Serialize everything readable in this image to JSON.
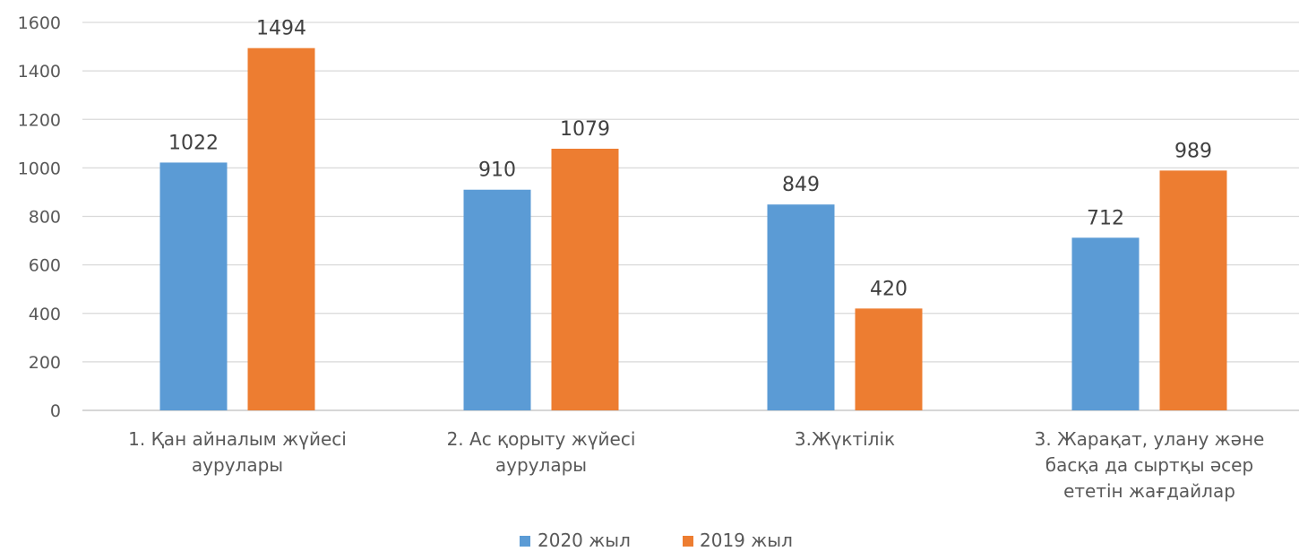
{
  "chart_data": {
    "type": "bar",
    "categories": [
      [
        "1. Қан айналым жүйесі",
        "аурулары"
      ],
      [
        "2. Ас қорыту жүйесі",
        "аурулары"
      ],
      [
        "3.Жүктілік"
      ],
      [
        "3. Жарақат, улану және",
        "басқа да сыртқы әсер",
        "ететін жағдайлар"
      ]
    ],
    "series": [
      {
        "name": "2020 жыл",
        "color": "#5b9bd5",
        "values": [
          1022,
          910,
          849,
          712
        ]
      },
      {
        "name": "2019 жыл",
        "color": "#ed7d31",
        "values": [
          1494,
          1079,
          420,
          989
        ]
      }
    ],
    "ylim": [
      0,
      1600
    ],
    "yticks": [
      0,
      200,
      400,
      600,
      800,
      1000,
      1200,
      1400,
      1600
    ],
    "grid": true,
    "legend": "bottom",
    "title": "",
    "xlabel": "",
    "ylabel": ""
  }
}
